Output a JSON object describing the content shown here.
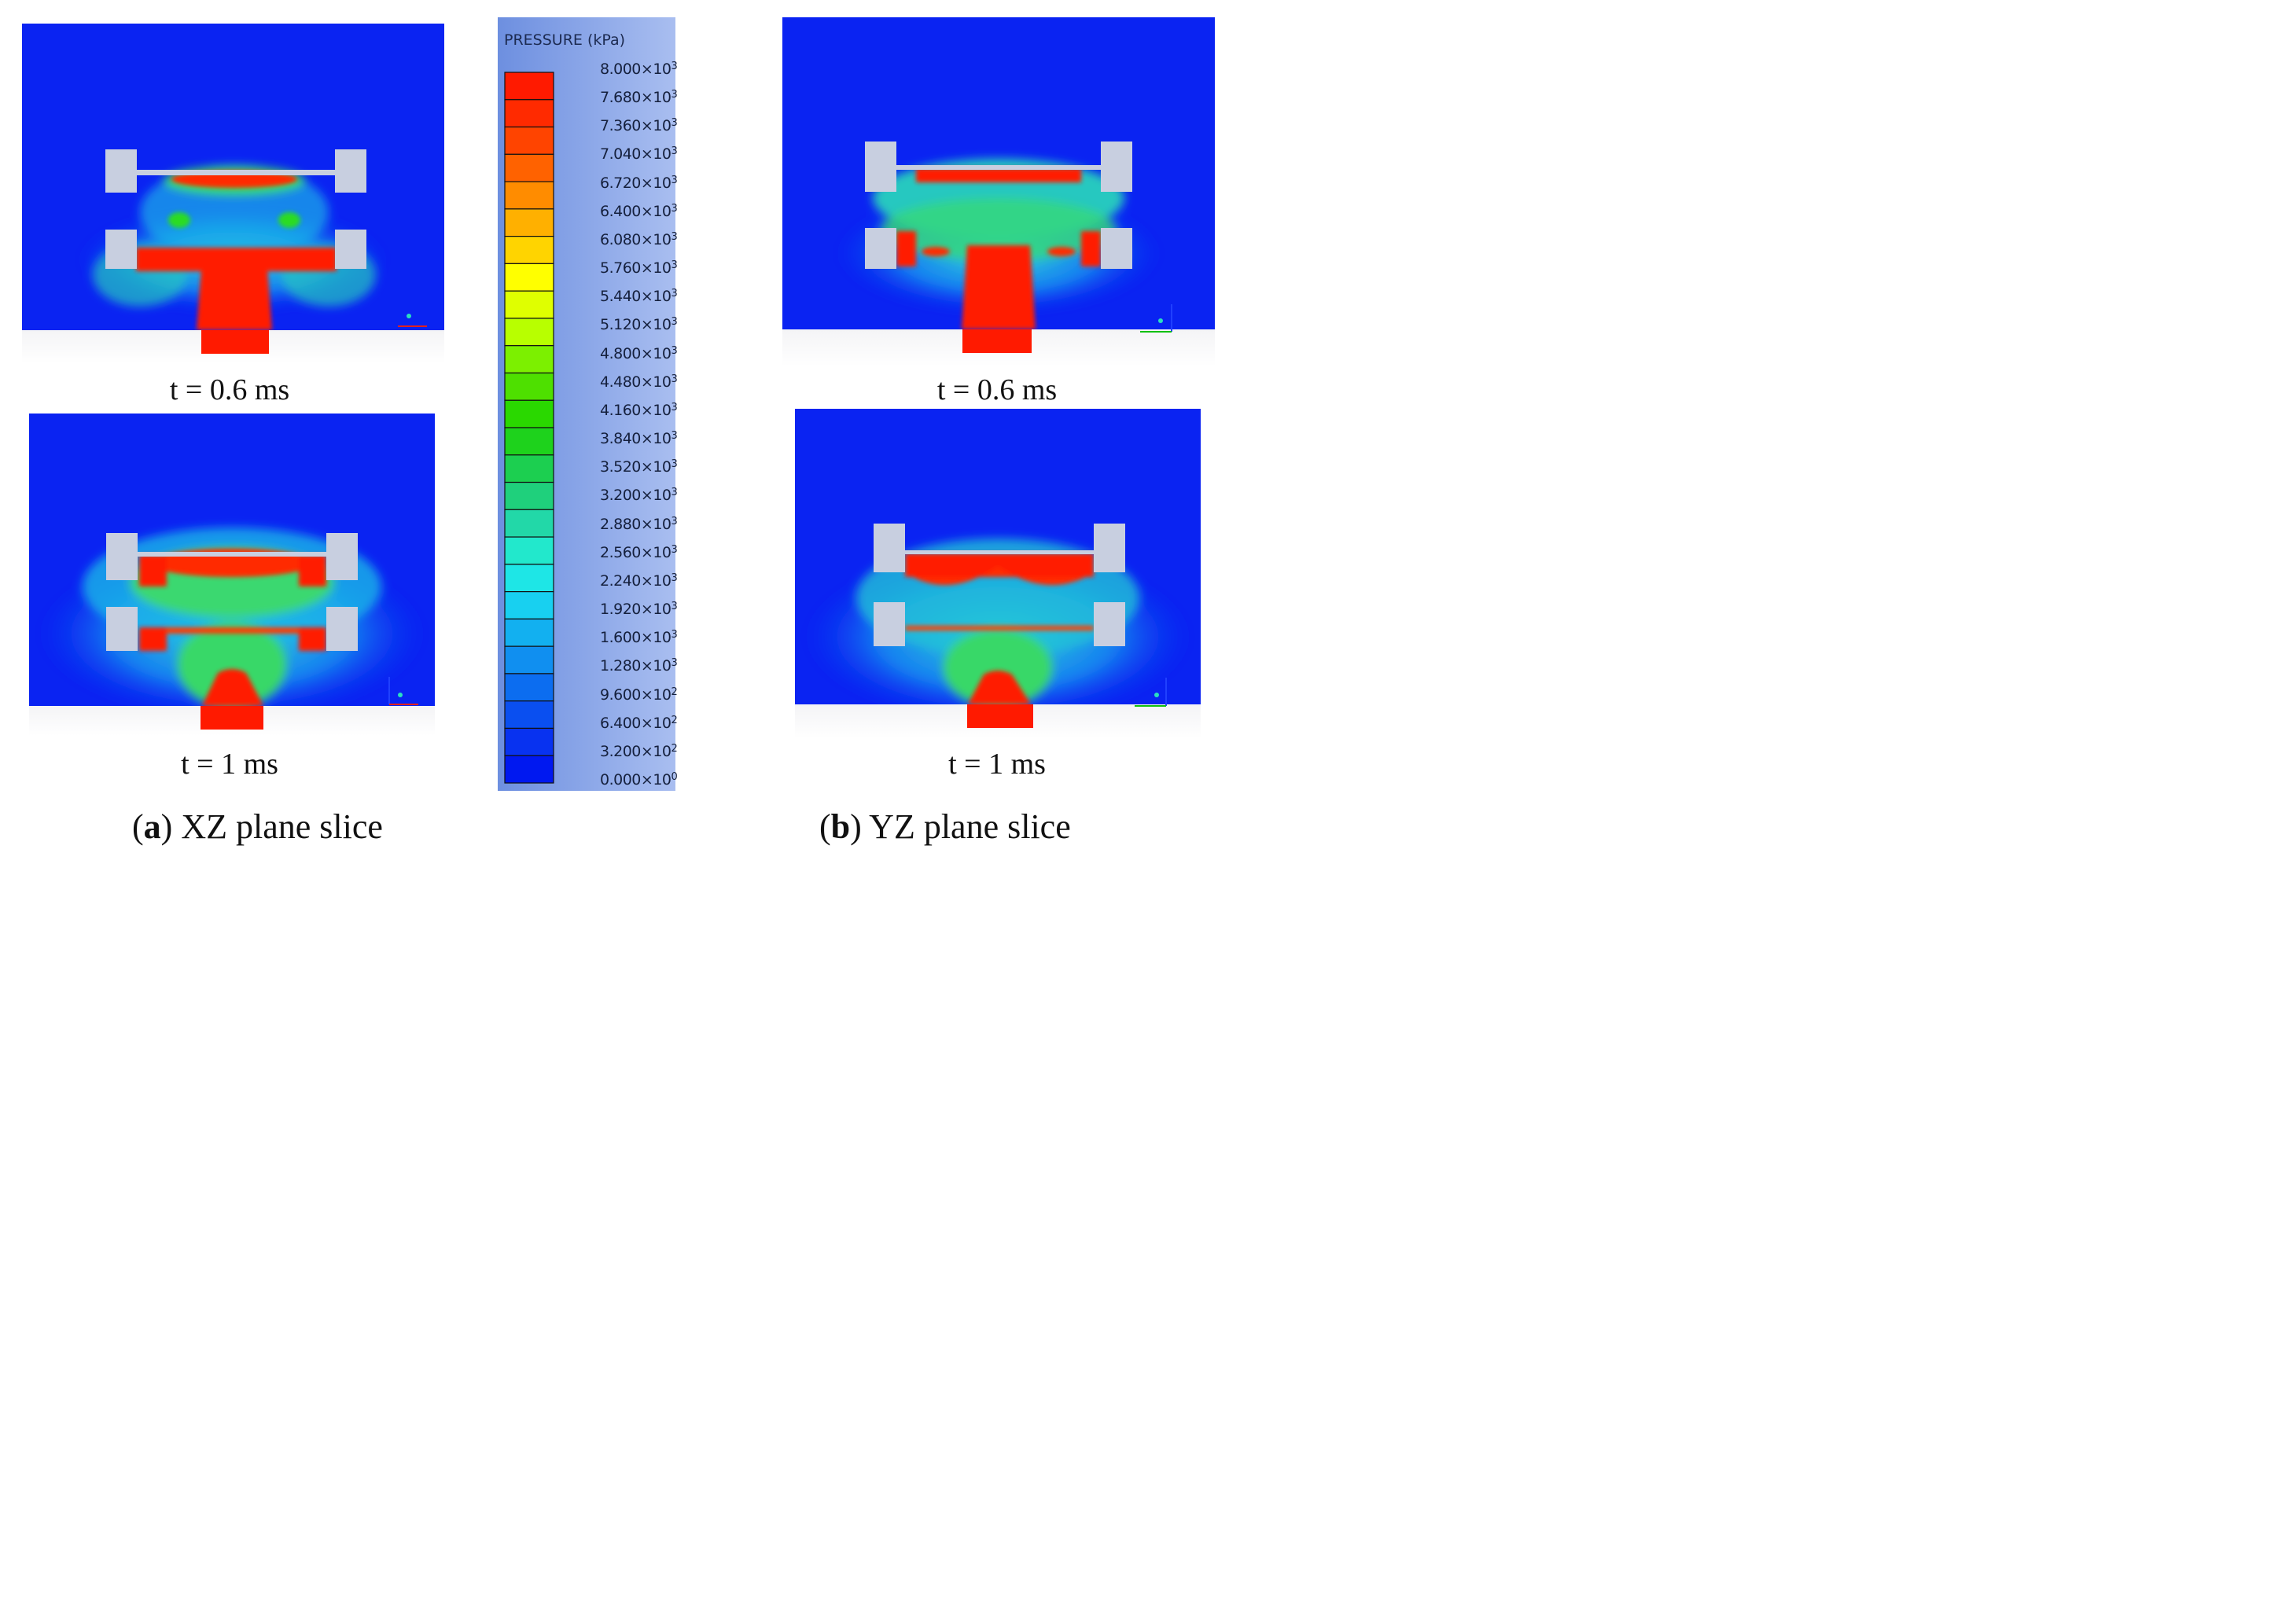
{
  "legend": {
    "title": "PRESSURE (kPa)",
    "ticks": [
      "8.000×10",
      "7.680×10",
      "7.360×10",
      "7.040×10",
      "6.720×10",
      "6.400×10",
      "6.080×10",
      "5.760×10",
      "5.440×10",
      "5.120×10",
      "4.800×10",
      "4.480×10",
      "4.160×10",
      "3.840×10",
      "3.520×10",
      "3.200×10",
      "2.880×10",
      "2.560×10",
      "2.240×10",
      "1.920×10",
      "1.600×10",
      "1.280×10",
      "9.600×10",
      "6.400×10",
      "3.200×10",
      "0.000×10"
    ],
    "exponents": [
      "3",
      "3",
      "3",
      "3",
      "3",
      "3",
      "3",
      "3",
      "3",
      "3",
      "3",
      "3",
      "3",
      "3",
      "3",
      "3",
      "3",
      "3",
      "3",
      "3",
      "3",
      "3",
      "2",
      "2",
      "2",
      "0"
    ],
    "colors": [
      "#ff1a00",
      "#ff2a00",
      "#ff4400",
      "#ff6200",
      "#ff8c00",
      "#ffb000",
      "#ffd400",
      "#ffff00",
      "#dfff00",
      "#b8ff00",
      "#7cf000",
      "#4ee000",
      "#2ad800",
      "#1ed21c",
      "#1ccf50",
      "#1fd07c",
      "#22d8a8",
      "#22e8cc",
      "#1ee6e6",
      "#18d0f0",
      "#12b0f0",
      "#108ff0",
      "#0c6df0",
      "#0a4ff0",
      "#0832f0",
      "#0018f0"
    ]
  },
  "panels": {
    "a_top": {
      "time_label": "t = 0.6 ms"
    },
    "a_bottom": {
      "time_label": "t = 1 ms"
    },
    "b_top": {
      "time_label": "t = 0.6 ms"
    },
    "b_bottom": {
      "time_label": "t = 1 ms"
    }
  },
  "subcaptions": {
    "a": {
      "letter": "a",
      "text": "XZ plane slice"
    },
    "b": {
      "letter": "b",
      "text": "YZ plane slice"
    }
  }
}
